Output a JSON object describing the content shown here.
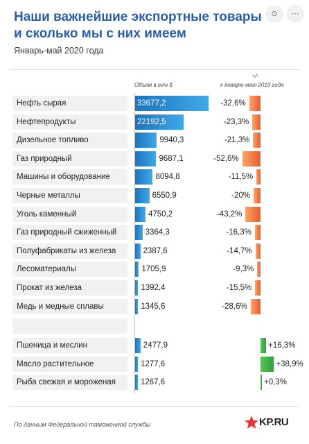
{
  "title_lines": [
    "Наши важнейшие экспортные товары",
    "и сколько мы с них имеем"
  ],
  "subtitle": "Январь-май 2020 года",
  "top_icons": [
    {
      "glyph": "⊙",
      "name": "lens-icon"
    },
    {
      "glyph": "⋯",
      "name": "more-icon"
    }
  ],
  "chart_data": {
    "type": "bar",
    "column_headers": {
      "volume": "Объем в млн $",
      "change_top": "+/-",
      "change_bottom": "к январю-маю 2019 года"
    },
    "exports_decline": [
      {
        "label": "Нефть сырая",
        "value": 33677.2,
        "value_text": "33677,2",
        "change": -32.6,
        "change_text": "-32,6%"
      },
      {
        "label": "Нефтепродукты",
        "value": 22192.5,
        "value_text": "22192,5",
        "change": -23.3,
        "change_text": "-23,3%"
      },
      {
        "label": "Дизельное топливо",
        "value": 9940.3,
        "value_text": "9940,3",
        "change": -21.3,
        "change_text": "-21,3%"
      },
      {
        "label": "Газ природный",
        "value": 9687.1,
        "value_text": "9687,1",
        "change": -52.6,
        "change_text": "-52,6%"
      },
      {
        "label": "Машины и оборудование",
        "value": 8094.8,
        "value_text": "8094,8",
        "change": -11.5,
        "change_text": "-11,5%"
      },
      {
        "label": "Черные металлы",
        "value": 6550.9,
        "value_text": "6550,9",
        "change": -20,
        "change_text": "-20%"
      },
      {
        "label": "Уголь каменный",
        "value": 4750.2,
        "value_text": "4750,2",
        "change": -43.2,
        "change_text": "-43,2%"
      },
      {
        "label": "Газ природный сжиженный",
        "value": 3364.3,
        "value_text": "3364,3",
        "change": -16.3,
        "change_text": "-16,3%"
      },
      {
        "label": "Полуфабрикаты из железа",
        "value": 2387.6,
        "value_text": "2387,6",
        "change": -14.7,
        "change_text": "-14,7%"
      },
      {
        "label": "Лесоматериалы",
        "value": 1705.9,
        "value_text": "1705,9",
        "change": -9.3,
        "change_text": "-9,3%"
      },
      {
        "label": "Прокат из железа",
        "value": 1392.4,
        "value_text": "1392,4",
        "change": -15.5,
        "change_text": "-15,5%"
      },
      {
        "label": "Медь и медные сплавы",
        "value": 1345.6,
        "value_text": "1345,6",
        "change": -28.6,
        "change_text": "-28,6%"
      }
    ],
    "exports_growth": [
      {
        "label": "Пшеница и меслин",
        "value": 2477.9,
        "value_text": "2477,9",
        "change": 16.3,
        "change_text": "+16,3%"
      },
      {
        "label": "Масло растительное",
        "value": 1277.6,
        "value_text": "1277,6",
        "change": 38.9,
        "change_text": "+38,9%"
      },
      {
        "label": "Рыба свежая и мороженая",
        "value": 1267.6,
        "value_text": "1267,6",
        "change": 0.3,
        "change_text": "+0,3%"
      }
    ]
  },
  "footer": "По данным Федеральной таможенной службы",
  "logo": {
    "text": "KP.RU",
    "star_color": "#e8322b"
  }
}
